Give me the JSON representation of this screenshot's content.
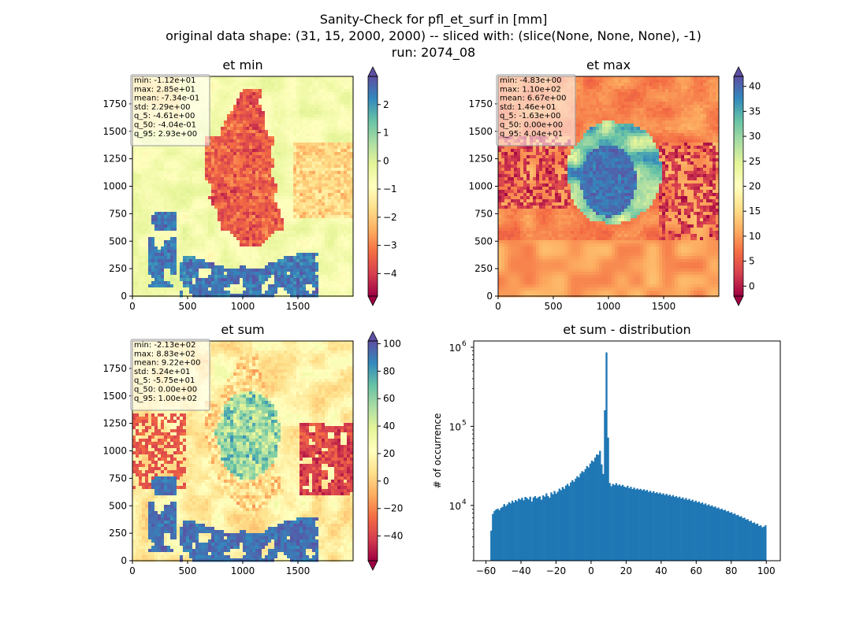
{
  "figure": {
    "suptitle_lines": [
      "Sanity-Check for pfl_et_surf in [mm]",
      "original data shape: (31, 15, 2000, 2000) -- sliced with: (slice(None, None, None), -1)",
      "run: 2074_08"
    ]
  },
  "chart_data": [
    {
      "type": "heatmap",
      "title": "et min",
      "xlabel": "",
      "ylabel": "",
      "xlim": [
        0,
        2000
      ],
      "ylim": [
        0,
        2000
      ],
      "x_ticks": [
        "0",
        "500",
        "1000",
        "1500"
      ],
      "y_ticks": [
        "0",
        "250",
        "500",
        "750",
        "1000",
        "1250",
        "1500",
        "1750"
      ],
      "colormap": "Spectral",
      "colorbar": {
        "range": [
          -4.8,
          3.0
        ],
        "ticks": [
          "2",
          "1",
          "0",
          "−1",
          "−2",
          "−3",
          "−4"
        ],
        "extend": "both"
      },
      "stats": [
        "min: -1.12e+01",
        "max: 2.85e+01",
        "mean: -7.34e-01",
        "std: 2.29e+00",
        "q_5: -4.61e+00",
        "q_50: -4.04e-01",
        "q_95: 2.93e+00"
      ]
    },
    {
      "type": "heatmap",
      "title": "et max",
      "xlabel": "",
      "ylabel": "",
      "xlim": [
        0,
        2000
      ],
      "ylim": [
        0,
        2000
      ],
      "x_ticks": [
        "0",
        "500",
        "1000",
        "1500"
      ],
      "y_ticks": [
        "0",
        "250",
        "500",
        "750",
        "1000",
        "1250",
        "1500",
        "1750"
      ],
      "colormap": "Spectral",
      "colorbar": {
        "range": [
          -2,
          42
        ],
        "ticks": [
          "40",
          "35",
          "30",
          "25",
          "20",
          "15",
          "10",
          "5",
          "0"
        ],
        "extend": "both"
      },
      "stats": [
        "min: -4.83e+00",
        "max: 1.10e+02",
        "mean: 6.67e+00",
        "std: 1.46e+01",
        "q_5: -1.63e+00",
        "q_50: 0.00e+00",
        "q_95: 4.04e+01"
      ]
    },
    {
      "type": "heatmap",
      "title": "et sum",
      "xlabel": "",
      "ylabel": "",
      "xlim": [
        0,
        2000
      ],
      "ylim": [
        0,
        2000
      ],
      "x_ticks": [
        "0",
        "500",
        "1000",
        "1500"
      ],
      "y_ticks": [
        "0",
        "250",
        "500",
        "750",
        "1000",
        "1250",
        "1500",
        "1750"
      ],
      "colormap": "Spectral",
      "colorbar": {
        "range": [
          -58,
          102
        ],
        "ticks": [
          "100",
          "80",
          "60",
          "40",
          "20",
          "0",
          "−20",
          "−40"
        ],
        "extend": "both"
      },
      "stats": [
        "min: -2.13e+02",
        "max: 8.83e+02",
        "mean: 9.22e+00",
        "std: 5.24e+01",
        "q_5: -5.75e+01",
        "q_50: 0.00e+00",
        "q_95: 1.00e+02"
      ]
    },
    {
      "type": "bar",
      "title": "et sum - distribution",
      "xlabel": "",
      "ylabel": "# of occurrence",
      "yscale": "log",
      "xlim": [
        -67,
        108
      ],
      "ylim": [
        2000,
        1200000
      ],
      "x_ticks": [
        "−60",
        "−40",
        "−20",
        "0",
        "20",
        "40",
        "60",
        "80",
        "100"
      ],
      "y_ticks": [
        {
          "base": "10",
          "exp": "4"
        },
        {
          "base": "10",
          "exp": "5"
        },
        {
          "base": "10",
          "exp": "6"
        }
      ],
      "color": "#1f77b4",
      "bin_range": [
        -57.5,
        100.0
      ],
      "bin_count": 170,
      "values": [
        4800,
        7800,
        8500,
        8900,
        9100,
        8700,
        9300,
        9600,
        10400,
        9800,
        10300,
        11000,
        10600,
        11500,
        10900,
        11700,
        11300,
        12200,
        11800,
        12500,
        11600,
        12800,
        12400,
        11900,
        12900,
        11200,
        12600,
        13100,
        12300,
        12700,
        13000,
        11800,
        13400,
        12900,
        14200,
        13100,
        12500,
        14600,
        13800,
        15200,
        14100,
        14900,
        16300,
        15600,
        17100,
        16200,
        17800,
        18700,
        17600,
        19500,
        20800,
        19900,
        21800,
        23400,
        22600,
        25300,
        27100,
        26400,
        28800,
        31500,
        30200,
        33800,
        36900,
        35800,
        40200,
        44100,
        43500,
        49000,
        33000,
        25000,
        160000,
        860000,
        72000,
        19200,
        17500,
        18700,
        18100,
        19100,
        17900,
        18400,
        17600,
        18200,
        17300,
        16900,
        17700,
        16500,
        17200,
        16100,
        16800,
        15900,
        16400,
        15800,
        16200,
        15500,
        16000,
        15300,
        15700,
        14800,
        15300,
        14500,
        15100,
        14300,
        14700,
        14100,
        14500,
        13800,
        14200,
        13500,
        14000,
        13300,
        13700,
        13000,
        13500,
        12800,
        13100,
        12500,
        12900,
        12200,
        12600,
        11900,
        12400,
        11700,
        12100,
        11400,
        11800,
        11100,
        11500,
        10900,
        11200,
        10600,
        10900,
        10300,
        10600,
        10000,
        10300,
        9800,
        10000,
        9500,
        9700,
        9200,
        9400,
        8900,
        9100,
        8700,
        8800,
        8400,
        8500,
        8100,
        8200,
        7800,
        7900,
        7500,
        7600,
        7200,
        7300,
        6900,
        7000,
        6600,
        6700,
        6300,
        6400,
        6000,
        6100,
        5800,
        5900,
        5500,
        5600,
        5300,
        5400,
        5600
      ]
    }
  ]
}
